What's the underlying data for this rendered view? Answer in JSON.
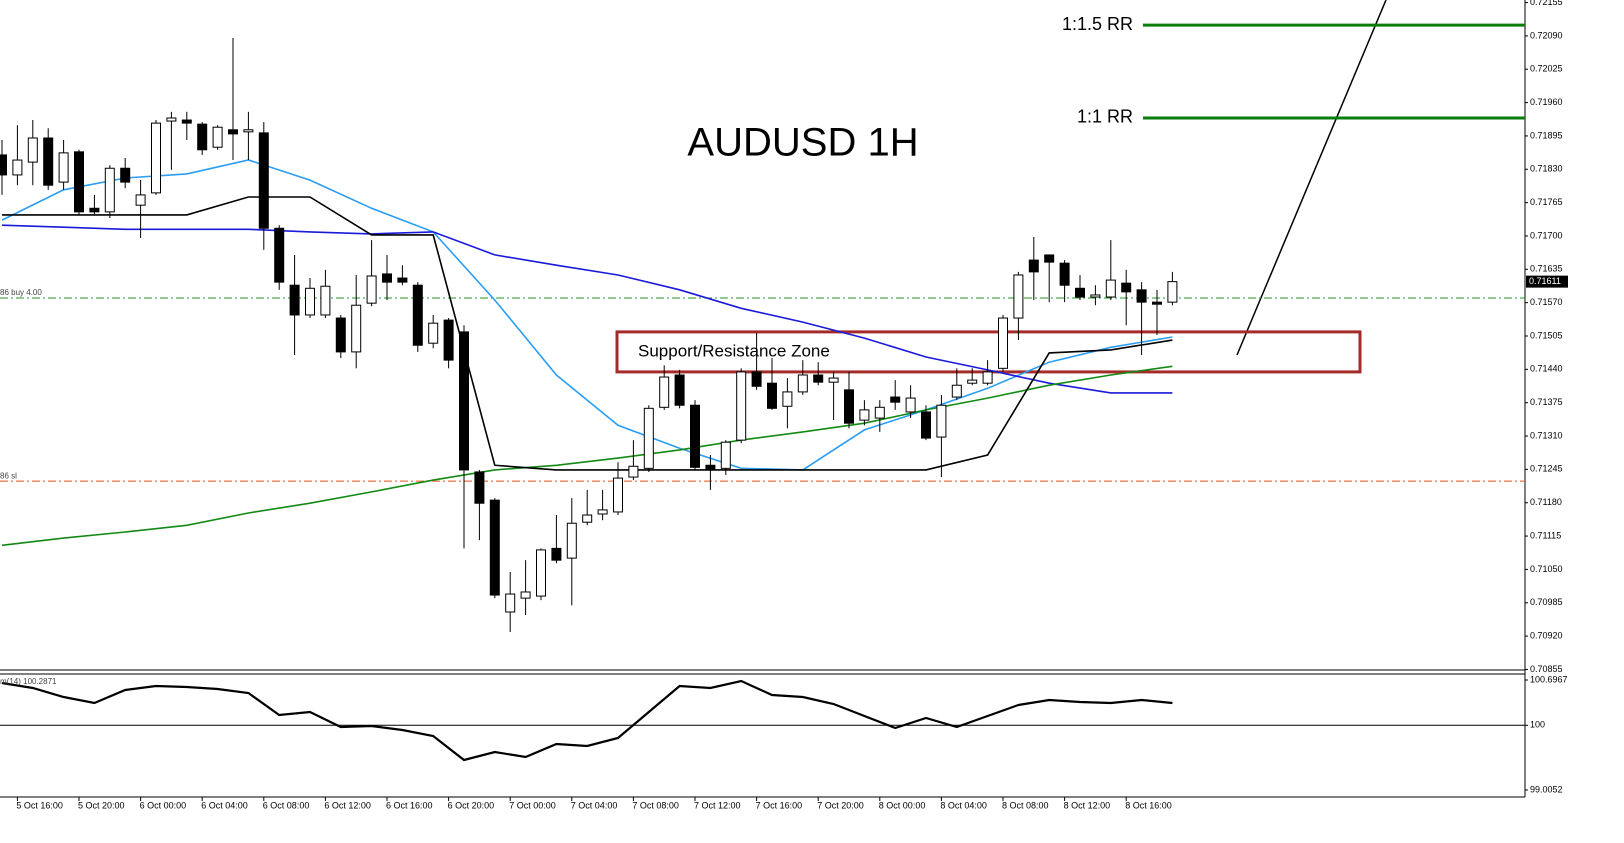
{
  "chart_data": {
    "type": "candlestick",
    "title": "AUDUSD 1H",
    "categories": [
      null,
      "5 Oct 16:00",
      null,
      null,
      null,
      "5 Oct 20:00",
      null,
      null,
      null,
      "6 Oct 00:00",
      null,
      null,
      null,
      "6 Oct 04:00",
      null,
      null,
      null,
      "6 Oct 08:00",
      null,
      null,
      null,
      "6 Oct 12:00",
      null,
      null,
      null,
      "6 Oct 16:00",
      null,
      null,
      null,
      "6 Oct 20:00",
      null,
      null,
      null,
      "7 Oct 00:00",
      null,
      null,
      null,
      "7 Oct 04:00",
      null,
      null,
      null,
      "7 Oct 08:00",
      null,
      null,
      null,
      "7 Oct 12:00",
      null,
      null,
      null,
      "7 Oct 16:00",
      null,
      null,
      null,
      "7 Oct 20:00",
      null,
      null,
      null,
      "8 Oct 00:00",
      null,
      null,
      null,
      "8 Oct 04:00",
      null,
      null,
      null,
      "8 Oct 08:00",
      null,
      null,
      null,
      "8 Oct 12:00",
      null,
      null,
      null,
      "8 Oct 16:00",
      null,
      null,
      null
    ],
    "open": [
      0.71858,
      0.71819,
      0.71844,
      0.71891,
      0.71805,
      0.71864,
      0.71754,
      0.71747,
      0.71832,
      0.7176,
      0.71784,
      0.71924,
      0.71926,
      0.71918,
      0.71873,
      0.71907,
      0.71903,
      0.71901,
      0.71715,
      0.71604,
      0.71546,
      0.71546,
      0.7154,
      0.71474,
      0.71569,
      0.71626,
      0.71618,
      0.71604,
      0.71491,
      0.71536,
      0.71513,
      0.7124,
      0.71185,
      0.70967,
      0.70994,
      0.70998,
      0.71091,
      0.71072,
      0.71142,
      0.71158,
      0.71162,
      0.7123,
      0.71247,
      0.71366,
      0.71429,
      0.7137,
      0.71253,
      0.71247,
      0.71302,
      0.71435,
      0.71413,
      0.71368,
      0.71396,
      0.71429,
      0.71415,
      0.714,
      0.71341,
      0.71345,
      0.71386,
      0.71357,
      0.71357,
      0.71308,
      0.71386,
      0.71413,
      0.71413,
      0.71442,
      0.7154,
      0.71653,
      0.71663,
      0.71647,
      0.71598,
      0.71581,
      0.71581,
      0.71608,
      0.71595,
      0.71571,
      0.71571
    ],
    "high": [
      0.71887,
      0.71916,
      0.71926,
      0.7191,
      0.71887,
      0.71868,
      0.7178,
      0.71838,
      0.71852,
      0.71809,
      0.71926,
      0.71942,
      0.71942,
      0.71922,
      0.71916,
      0.72086,
      0.71942,
      0.71922,
      0.71721,
      0.71663,
      0.71618,
      0.71634,
      0.71546,
      0.71624,
      0.71692,
      0.71663,
      0.71643,
      0.7161,
      0.71546,
      0.7154,
      0.71526,
      0.71244,
      0.71189,
      0.71045,
      0.71068,
      0.71091,
      0.71156,
      0.71189,
      0.71205,
      0.71205,
      0.71259,
      0.71302,
      0.7137,
      0.71448,
      0.71439,
      0.7138,
      0.71273,
      0.71302,
      0.71442,
      0.71511,
      0.71462,
      0.71423,
      0.71458,
      0.71454,
      0.71435,
      0.71435,
      0.7138,
      0.7138,
      0.71419,
      0.71409,
      0.7137,
      0.7139,
      0.71442,
      0.71442,
      0.71458,
      0.71546,
      0.7163,
      0.71698,
      0.71663,
      0.71653,
      0.71624,
      0.71604,
      0.71692,
      0.71634,
      0.7161,
      0.71595,
      0.7163
    ],
    "low": [
      0.7178,
      0.71799,
      0.71799,
      0.7179,
      0.7179,
      0.71741,
      0.71741,
      0.71735,
      0.71793,
      0.71696,
      0.7178,
      0.71829,
      0.71887,
      0.71858,
      0.71868,
      0.71848,
      0.71848,
      0.71673,
      0.71595,
      0.71468,
      0.7154,
      0.7154,
      0.71462,
      0.71442,
      0.71563,
      0.71575,
      0.71604,
      0.71474,
      0.71481,
      0.71442,
      0.71091,
      0.71107,
      0.70994,
      0.70928,
      0.70961,
      0.7099,
      0.71062,
      0.7098,
      0.71136,
      0.71146,
      0.71156,
      0.71224,
      0.7124,
      0.71361,
      0.71364,
      0.71244,
      0.71205,
      0.71234,
      0.71296,
      0.714,
      0.71361,
      0.71325,
      0.7139,
      0.71409,
      0.71341,
      0.71325,
      0.71331,
      0.71318,
      0.71361,
      0.71345,
      0.71302,
      0.7123,
      0.7138,
      0.71409,
      0.71409,
      0.71435,
      0.71497,
      0.71575,
      0.71571,
      0.71571,
      0.71575,
      0.71565,
      0.71575,
      0.71526,
      0.71468,
      0.71507,
      0.71565
    ],
    "close": [
      0.71819,
      0.71848,
      0.71891,
      0.71799,
      0.71862,
      0.71747,
      0.71747,
      0.71832,
      0.71805,
      0.7178,
      0.7192,
      0.7193,
      0.7192,
      0.71868,
      0.71912,
      0.71899,
      0.71907,
      0.71715,
      0.7161,
      0.71546,
      0.71598,
      0.71602,
      0.71474,
      0.71565,
      0.71622,
      0.7161,
      0.7161,
      0.71487,
      0.7153,
      0.71458,
      0.71244,
      0.71179,
      0.71,
      0.71002,
      0.71006,
      0.71088,
      0.71068,
      0.7114,
      0.71156,
      0.71166,
      0.71228,
      0.71251,
      0.71364,
      0.71425,
      0.7137,
      0.71249,
      0.71244,
      0.71298,
      0.71435,
      0.71407,
      0.71364,
      0.71396,
      0.71429,
      0.71415,
      0.71423,
      0.71335,
      0.71361,
      0.71366,
      0.71376,
      0.71384,
      0.71306,
      0.7137,
      0.71409,
      0.71419,
      0.71435,
      0.7154,
      0.71624,
      0.7163,
      0.71649,
      0.71604,
      0.71581,
      0.71585,
      0.71614,
      0.71591,
      0.71571,
      0.71567,
      0.71611
    ],
    "up_color": "#ffffff",
    "down_color": "#000000",
    "ylim": [
      0.7085,
      0.7216
    ],
    "yticks": [
      0.72155,
      {
        "value": 0.7209,
        "label": "0.72090"
      },
      0.72025,
      {
        "value": 0.7196,
        "label": "0.71960"
      },
      0.71895,
      {
        "value": 0.7183,
        "label": "0.71830"
      },
      0.71765,
      {
        "value": 0.717,
        "label": "0.71700"
      },
      0.71635,
      {
        "value": 0.7157,
        "label": "0.71570"
      },
      0.71505,
      {
        "value": 0.7144,
        "label": "0.71440"
      },
      0.71375,
      {
        "value": 0.7131,
        "label": "0.71310"
      },
      0.71245,
      {
        "value": 0.7118,
        "label": "0.71180"
      },
      0.71115,
      {
        "value": 0.7105,
        "label": "0.71050"
      },
      0.70985,
      {
        "value": 0.7092,
        "label": "0.70920"
      },
      0.70855
    ],
    "overlays": [
      {
        "color": "#2a9df4",
        "x": [
          0,
          4,
          8,
          12,
          16,
          20,
          24,
          28,
          32,
          36,
          40,
          44,
          48,
          52,
          56,
          60,
          64,
          68,
          72,
          76
        ],
        "values": [
          0.71731,
          0.7179,
          0.71813,
          0.71821,
          0.71848,
          0.71809,
          0.71754,
          0.71708,
          0.71575,
          0.71429,
          0.71331,
          0.71286,
          0.71247,
          0.71244,
          0.71322,
          0.71361,
          0.71403,
          0.71454,
          0.71483,
          0.71503
        ]
      },
      {
        "color": "#1a1adb",
        "x": [
          0,
          4,
          8,
          12,
          16,
          20,
          24,
          28,
          32,
          36,
          40,
          44,
          48,
          52,
          56,
          60,
          64,
          68,
          72,
          76
        ],
        "values": [
          0.71721,
          0.71717,
          0.71713,
          0.71713,
          0.71713,
          0.71708,
          0.71704,
          0.71708,
          0.71663,
          0.71643,
          0.71624,
          0.71595,
          0.71559,
          0.71532,
          0.71501,
          0.71464,
          0.71439,
          0.71413,
          0.71394,
          0.71394
        ]
      },
      {
        "color": "#138a13",
        "x": [
          0,
          4,
          8,
          12,
          16,
          20,
          24,
          28,
          32,
          36,
          40,
          44,
          48,
          52,
          56,
          60,
          64,
          68,
          72,
          76
        ],
        "values": [
          0.71097,
          0.71111,
          0.71123,
          0.71136,
          0.7116,
          0.71179,
          0.71201,
          0.71224,
          0.71244,
          0.71253,
          0.71267,
          0.71283,
          0.71302,
          0.71318,
          0.71335,
          0.71361,
          0.71384,
          0.71409,
          0.71429,
          0.71446
        ]
      },
      {
        "color": "#000000",
        "x": [
          0,
          4,
          8,
          12,
          16,
          20,
          24,
          28,
          32,
          36,
          40,
          44,
          48,
          52,
          56,
          60,
          64,
          68,
          72,
          76
        ],
        "values": [
          0.71741,
          0.71741,
          0.71741,
          0.71741,
          0.71776,
          0.71776,
          0.71702,
          0.71702,
          0.71253,
          0.71244,
          0.71244,
          0.71244,
          0.71244,
          0.71244,
          0.71244,
          0.71244,
          0.71273,
          0.71472,
          0.71478,
          0.71497
        ]
      }
    ],
    "levels": [
      {
        "label": "1:1.5 RR",
        "value": 0.72111,
        "color": "#0b7d0b"
      },
      {
        "label": "1:1 RR",
        "value": 0.7193,
        "color": "#0b7d0b"
      }
    ],
    "zone": {
      "label": "Support/Resistance Zone",
      "top": 0.71513,
      "bottom": 0.71435,
      "color": "#a52a2a"
    },
    "order_lines": [
      {
        "label": "86 buy 4.00",
        "value": 0.71579,
        "color": "#1f9a1f"
      },
      {
        "label": "86 sl",
        "value": 0.71222,
        "color": "#e8501a"
      }
    ],
    "oscillator": {
      "label": "m(14) 100.2871",
      "ylim": [
        99.0052,
        100.6967
      ],
      "yticks": [
        100.6967,
        100,
        99.0052
      ],
      "level": 100,
      "color": "#000000",
      "x": [
        0,
        2,
        4,
        6,
        8,
        10,
        12,
        14,
        16,
        18,
        20,
        22,
        24,
        26,
        28,
        30,
        32,
        34,
        36,
        38,
        40,
        42,
        44,
        46,
        48,
        50,
        52,
        54,
        56,
        58,
        60,
        62,
        64,
        66,
        68,
        70,
        72,
        74,
        76
      ],
      "values": [
        100.6506,
        100.5737,
        100.4353,
        100.343,
        100.5429,
        100.6044,
        100.5891,
        100.5583,
        100.4968,
        100.1585,
        100.2046,
        99.974,
        99.9894,
        99.9278,
        99.8356,
        99.4665,
        99.5896,
        99.5127,
        99.7126,
        99.6818,
        99.8048,
        100.2046,
        100.6044,
        100.5737,
        100.6813,
        100.466,
        100.4353,
        100.3277,
        100.1431,
        99.9586,
        100.1124,
        99.974,
        100.1431,
        100.3123,
        100.3892,
        100.3584,
        100.343,
        100.3892,
        100.343
      ]
    }
  }
}
